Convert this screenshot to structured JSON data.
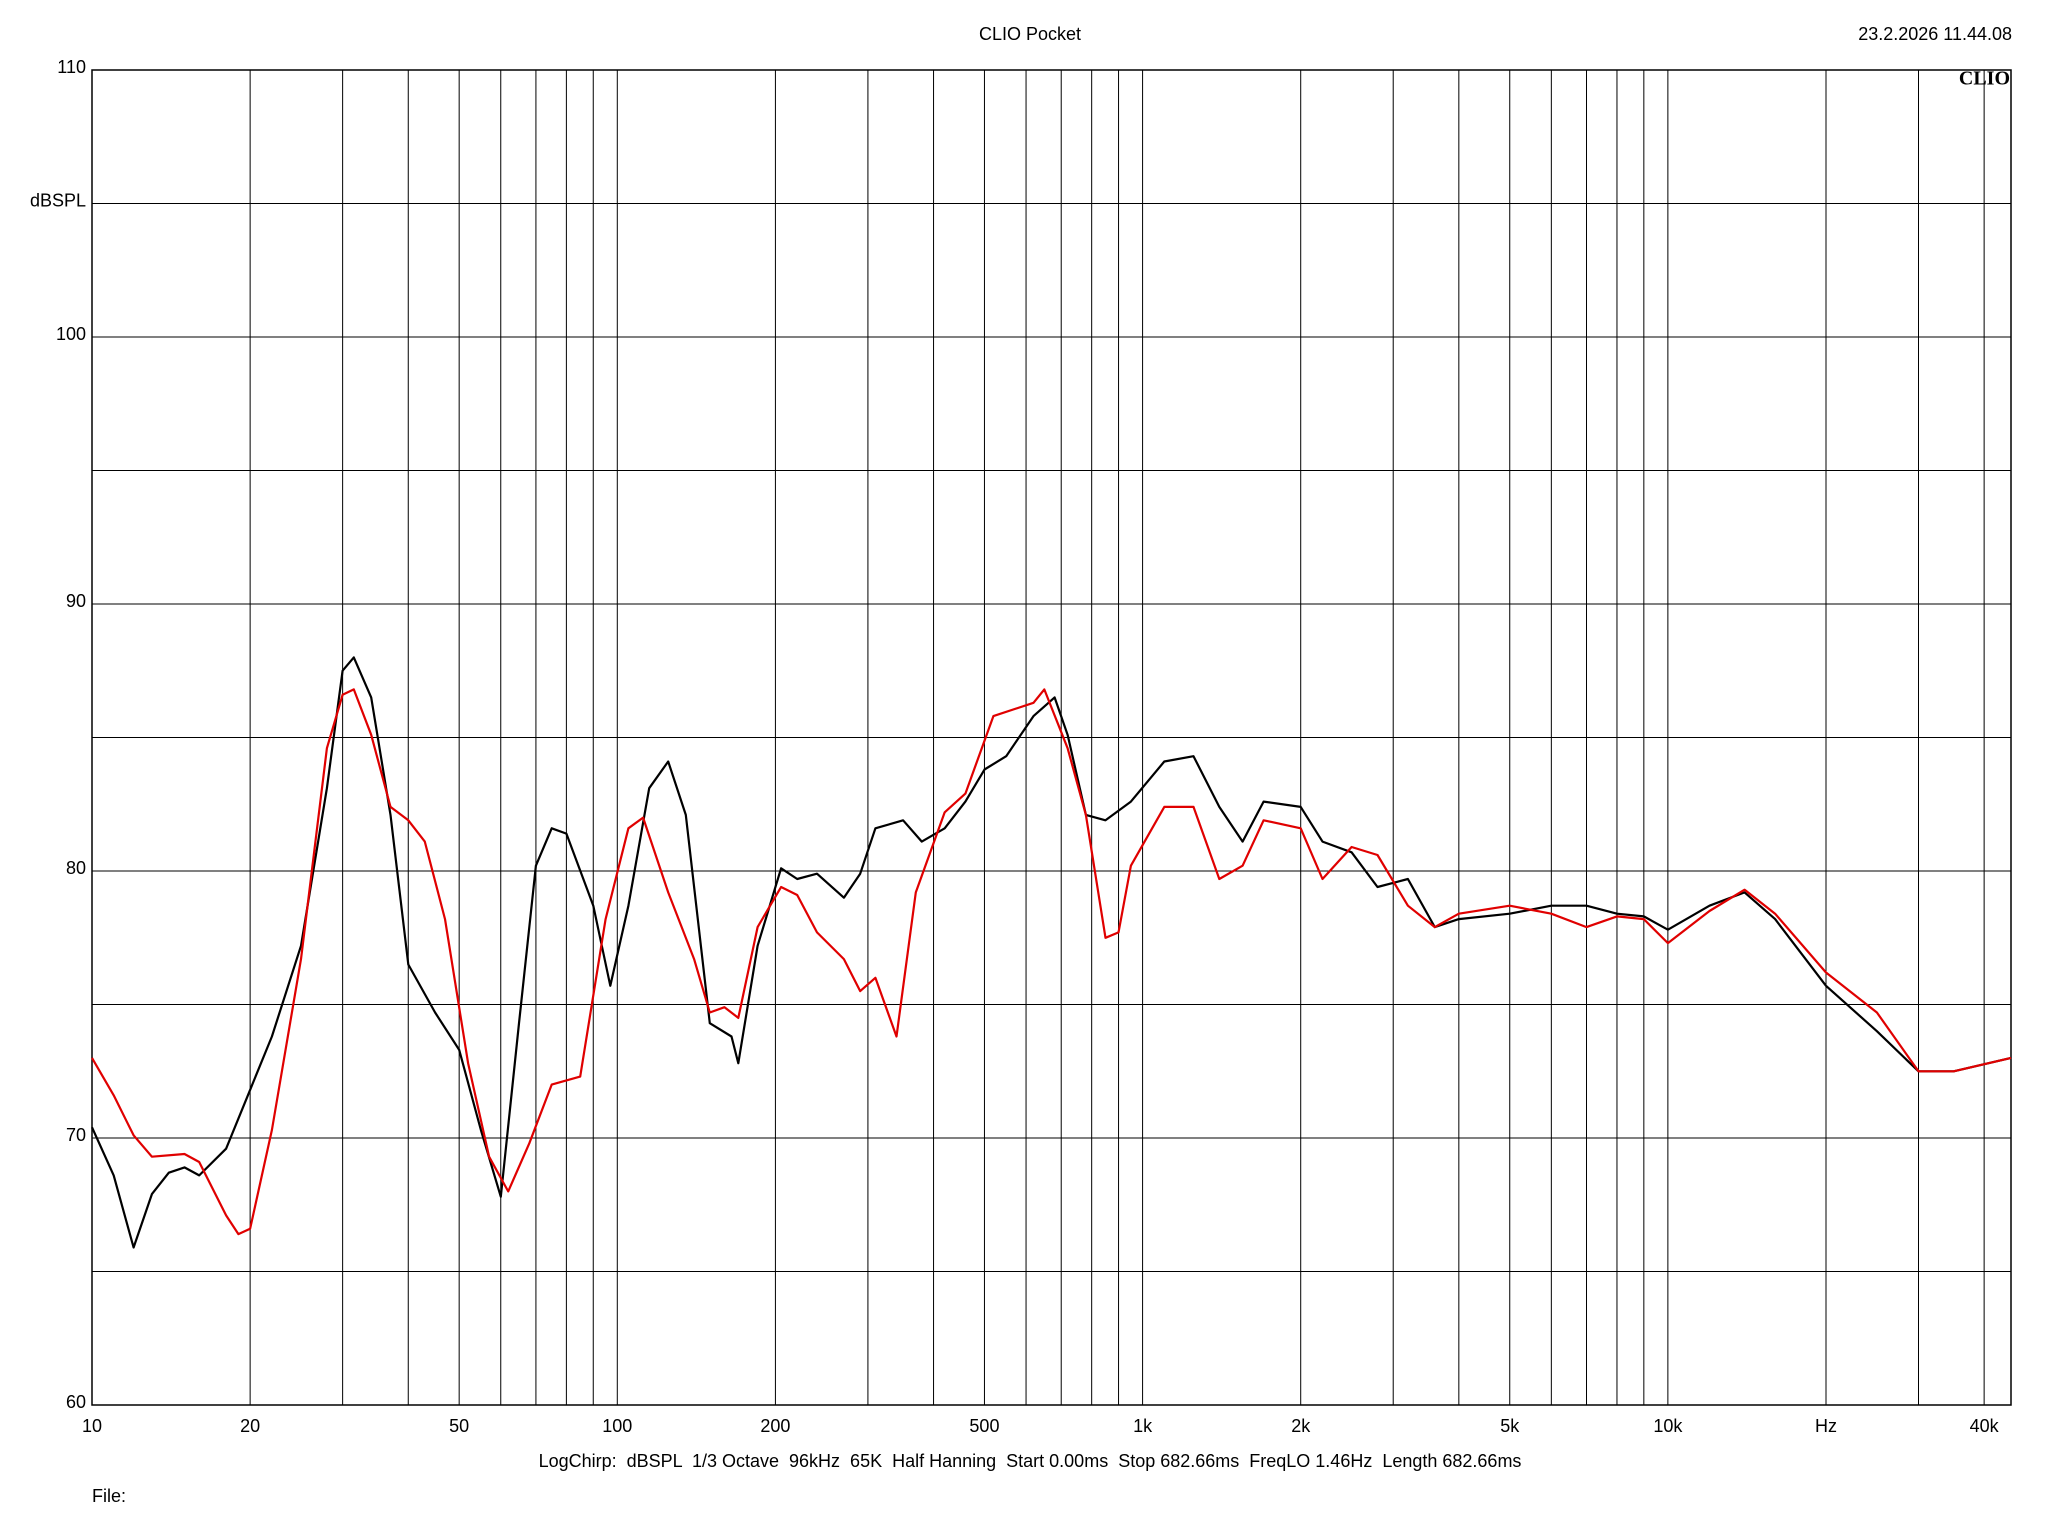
{
  "chart_data": {
    "type": "line",
    "title": "CLIO Pocket",
    "timestamp": "23.2.2026 11.44.08",
    "logo": "CLIO",
    "footer": "LogChirp:  dBSPL  1/3 Octave  96kHz  65K  Half Hanning  Start 0.00ms  Stop 682.66ms  FreqLO 1.46Hz  Length 682.66ms",
    "file_label": "File:",
    "log_x": true,
    "grid": true,
    "xlim": [
      10,
      45000
    ],
    "ylim": [
      60,
      110
    ],
    "xticks": [
      10,
      20,
      50,
      100,
      200,
      500,
      {
        "value": 1000,
        "label": "1k"
      },
      {
        "value": 2000,
        "label": "2k"
      },
      {
        "value": 5000,
        "label": "5k"
      },
      {
        "value": 10000,
        "label": "10k"
      },
      {
        "value": 20000,
        "label": "Hz"
      },
      {
        "value": 40000,
        "label": "40k"
      }
    ],
    "minor_xticks": [
      30,
      40,
      60,
      70,
      80,
      90,
      300,
      400,
      600,
      700,
      800,
      900,
      3000,
      4000,
      6000,
      7000,
      8000,
      9000,
      30000
    ],
    "yticks": [
      60,
      70,
      80,
      90,
      100,
      {
        "value": 105,
        "label": "dBSPL"
      },
      110
    ],
    "minor_yticks": [
      65,
      75,
      85,
      95
    ],
    "series": [
      {
        "color": "#000000",
        "x": [
          10,
          11,
          12,
          13,
          14,
          15,
          16,
          18,
          20,
          22,
          25,
          28,
          30,
          31.5,
          34,
          37,
          40,
          45,
          50,
          55,
          60,
          65,
          70,
          75,
          80,
          90,
          97,
          105,
          115,
          125,
          135,
          150,
          165,
          170,
          185,
          205,
          220,
          240,
          270,
          290,
          310,
          350,
          380,
          420,
          460,
          500,
          550,
          620,
          680,
          720,
          780,
          850,
          950,
          1100,
          1250,
          1400,
          1550,
          1700,
          2000,
          2200,
          2500,
          2800,
          3200,
          3600,
          4000,
          5000,
          6000,
          7000,
          8000,
          9000,
          10000,
          12000,
          14000,
          16000,
          20000,
          25000,
          30000,
          35000,
          45000
        ],
        "values": [
          70.4,
          68.6,
          65.9,
          67.9,
          68.7,
          68.9,
          68.6,
          69.6,
          71.8,
          73.8,
          77.2,
          83.1,
          87.5,
          88.0,
          86.5,
          82.1,
          76.5,
          74.7,
          73.3,
          70.3,
          67.8,
          74.3,
          80.2,
          81.6,
          81.4,
          78.7,
          75.7,
          78.7,
          83.1,
          84.1,
          82.1,
          74.3,
          73.8,
          72.8,
          77.2,
          80.1,
          79.7,
          79.9,
          79.0,
          79.9,
          81.6,
          81.9,
          81.1,
          81.6,
          82.6,
          83.8,
          84.3,
          85.8,
          86.5,
          85.1,
          82.1,
          81.9,
          82.6,
          84.1,
          84.3,
          82.4,
          81.1,
          82.6,
          82.4,
          81.1,
          80.7,
          79.4,
          79.7,
          77.9,
          78.2,
          78.4,
          78.7,
          78.7,
          78.4,
          78.3,
          77.8,
          78.7,
          79.2,
          78.2,
          75.7,
          74.0,
          72.5,
          72.5,
          73.0
        ]
      },
      {
        "color": "#e00000",
        "x": [
          10,
          11,
          12,
          13,
          15,
          16,
          18,
          19,
          20,
          22,
          25,
          28,
          30,
          31.5,
          34,
          37,
          40,
          43,
          47,
          52,
          57,
          62,
          68,
          75,
          85,
          95,
          105,
          112,
          125,
          140,
          150,
          160,
          170,
          185,
          205,
          220,
          240,
          270,
          290,
          310,
          340,
          370,
          420,
          460,
          520,
          620,
          650,
          720,
          780,
          850,
          900,
          950,
          1100,
          1250,
          1400,
          1550,
          1700,
          2000,
          2200,
          2500,
          2800,
          3200,
          3600,
          4000,
          5000,
          6000,
          7000,
          8000,
          9000,
          10000,
          12000,
          14000,
          16000,
          20000,
          25000,
          30000,
          35000,
          45000
        ],
        "values": [
          73.0,
          71.6,
          70.1,
          69.3,
          69.4,
          69.1,
          67.1,
          66.4,
          66.6,
          70.3,
          76.7,
          84.6,
          86.6,
          86.8,
          85.1,
          82.4,
          81.9,
          81.1,
          78.2,
          72.8,
          69.3,
          68.0,
          69.8,
          72.0,
          72.3,
          78.2,
          81.6,
          82.0,
          79.2,
          76.7,
          74.7,
          74.9,
          74.5,
          77.9,
          79.4,
          79.1,
          77.7,
          76.7,
          75.5,
          76.0,
          73.8,
          79.2,
          82.2,
          82.9,
          85.8,
          86.3,
          86.8,
          84.6,
          82.1,
          77.5,
          77.7,
          80.2,
          82.4,
          82.4,
          79.7,
          80.2,
          81.9,
          81.6,
          79.7,
          80.9,
          80.6,
          78.7,
          77.9,
          78.4,
          78.7,
          78.4,
          77.9,
          78.3,
          78.2,
          77.3,
          78.5,
          79.3,
          78.4,
          76.2,
          74.7,
          72.5,
          72.5,
          73.0
        ]
      }
    ]
  }
}
